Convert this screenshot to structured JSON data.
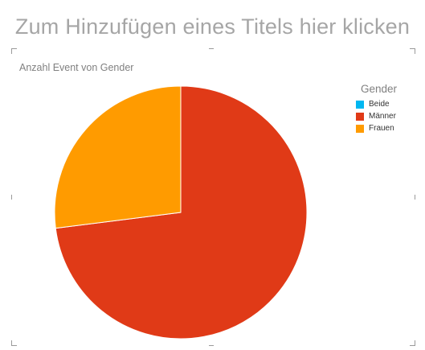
{
  "header": {
    "title_placeholder": "Zum Hinzufügen eines Titels hier klicken"
  },
  "chart_data": {
    "type": "pie",
    "title": "Anzahl Event von Gender",
    "legend_title": "Gender",
    "legend_position": "top-right",
    "categories": [
      "Beide",
      "Männer",
      "Frauen"
    ],
    "values": [
      0,
      73,
      27
    ],
    "colors": [
      "#00b7f1",
      "#e03a17",
      "#ff9b00"
    ]
  }
}
